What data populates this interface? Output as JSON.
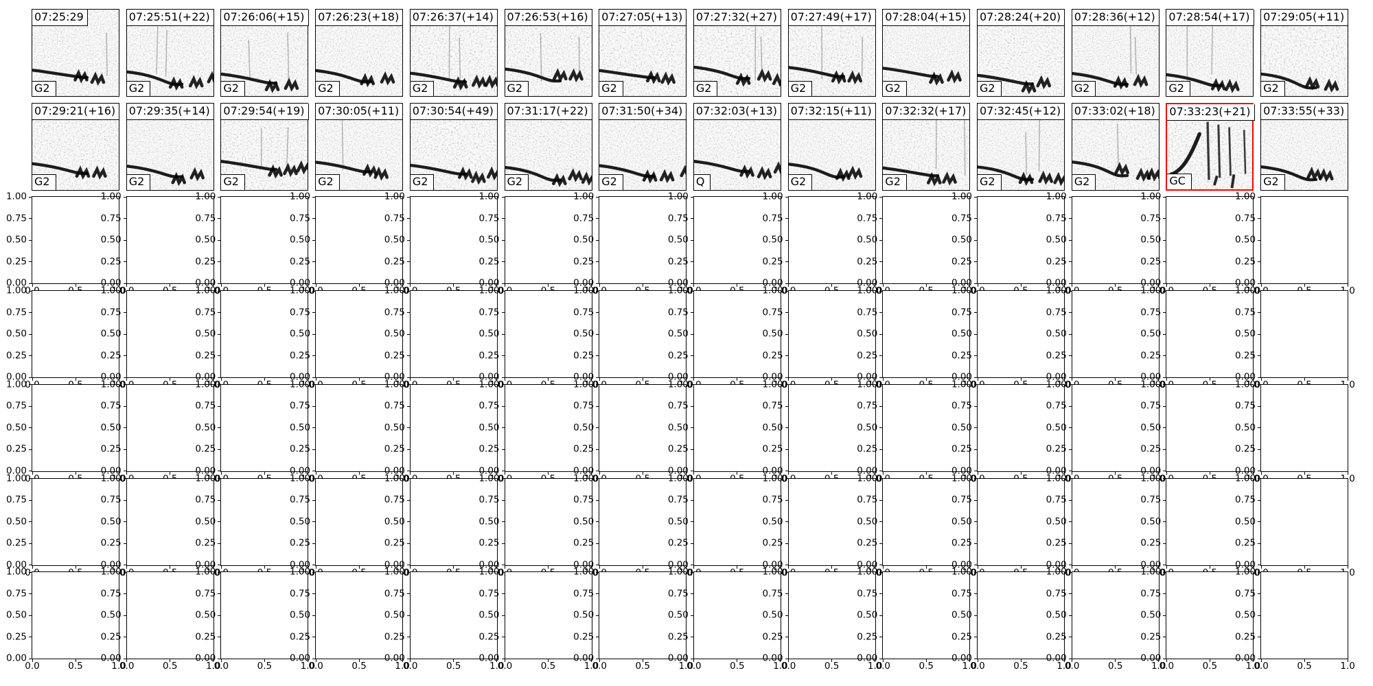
{
  "colors": {
    "background": "#ffffff",
    "foreground": "#000000",
    "highlight_border": "#ff0000"
  },
  "chart_data": {
    "type": "heatmap",
    "title": "",
    "layout": "matplotlib-style figure: 7 rows x 14 columns of subplots; rows 1-2 are grayscale spectrogram thumbnails with timestamp and class labels, rows 3-7 are empty axes with default 0-1 limits",
    "legend_position": "none",
    "grid": false,
    "spectrogram_rows": [
      {
        "panels": [
          {
            "time": "07:25:29",
            "label": "G2",
            "highlight": false
          },
          {
            "time": "07:25:51(+22)",
            "label": "G2",
            "highlight": false
          },
          {
            "time": "07:26:06(+15)",
            "label": "G2",
            "highlight": false
          },
          {
            "time": "07:26:23(+18)",
            "label": "G2",
            "highlight": false
          },
          {
            "time": "07:26:37(+14)",
            "label": "G2",
            "highlight": false
          },
          {
            "time": "07:26:53(+16)",
            "label": "G2",
            "highlight": false
          },
          {
            "time": "07:27:05(+13)",
            "label": "G2",
            "highlight": false
          },
          {
            "time": "07:27:32(+27)",
            "label": "G2",
            "highlight": false
          },
          {
            "time": "07:27:49(+17)",
            "label": "G2",
            "highlight": false
          },
          {
            "time": "07:28:04(+15)",
            "label": "G2",
            "highlight": false
          },
          {
            "time": "07:28:24(+20)",
            "label": "G2",
            "highlight": false
          },
          {
            "time": "07:28:36(+12)",
            "label": "G2",
            "highlight": false
          },
          {
            "time": "07:28:54(+17)",
            "label": "G2",
            "highlight": false
          },
          {
            "time": "07:29:05(+11)",
            "label": "G2",
            "highlight": false
          }
        ]
      },
      {
        "panels": [
          {
            "time": "07:29:21(+16)",
            "label": "G2",
            "highlight": false
          },
          {
            "time": "07:29:35(+14)",
            "label": "G2",
            "highlight": false
          },
          {
            "time": "07:29:54(+19)",
            "label": "G2",
            "highlight": false
          },
          {
            "time": "07:30:05(+11)",
            "label": "G2",
            "highlight": false
          },
          {
            "time": "07:30:54(+49)",
            "label": "G2",
            "highlight": false
          },
          {
            "time": "07:31:17(+22)",
            "label": "G2",
            "highlight": false
          },
          {
            "time": "07:31:50(+34)",
            "label": "G2",
            "highlight": false
          },
          {
            "time": "07:32:03(+13)",
            "label": "Q",
            "highlight": false
          },
          {
            "time": "07:32:15(+11)",
            "label": "G2",
            "highlight": false
          },
          {
            "time": "07:32:32(+17)",
            "label": "G2",
            "highlight": false
          },
          {
            "time": "07:32:45(+12)",
            "label": "G2",
            "highlight": false
          },
          {
            "time": "07:33:02(+18)",
            "label": "G2",
            "highlight": false
          },
          {
            "time": "07:33:23(+21)",
            "label": "GC",
            "highlight": true
          },
          {
            "time": "07:33:55(+33)",
            "label": "G2",
            "highlight": false
          }
        ]
      }
    ],
    "empty_axes_grid": {
      "rows": 5,
      "cols": 14,
      "xlim": [
        0.0,
        1.0
      ],
      "ylim": [
        0.0,
        1.0
      ],
      "ytick_labels": [
        "1.00",
        "0.75",
        "0.50",
        "0.25",
        "0.00"
      ],
      "xtick_labels": [
        "0.0",
        "0.5",
        "1.0"
      ]
    }
  }
}
